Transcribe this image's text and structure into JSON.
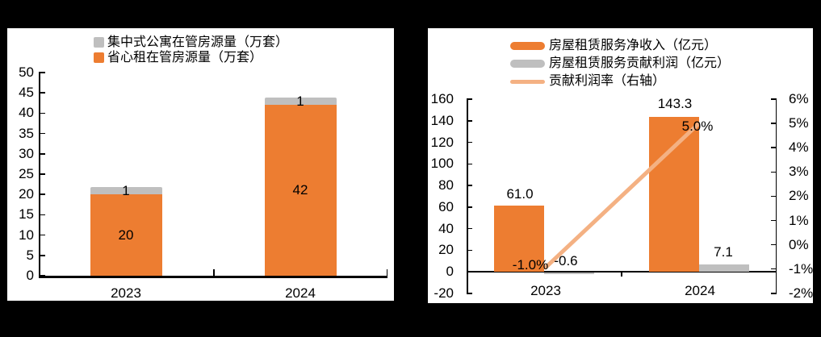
{
  "left_chart": {
    "legend": [
      {
        "label": "集中式公寓在管房源量（万套）",
        "color": "#BFBFBF",
        "marker": "square"
      },
      {
        "label": "省心租在管房源量（万套）",
        "color": "#ED7D31",
        "marker": "square"
      }
    ]
  },
  "right_chart": {
    "legend": [
      {
        "label": "房屋租赁服务净收入（亿元）",
        "color": "#ED7D31",
        "marker": "bar"
      },
      {
        "label": "房屋租赁服务贡献利润（亿元）",
        "color": "#BFBFBF",
        "marker": "bar"
      },
      {
        "label": "贡献利润率（右轴）",
        "color": "#F4B183",
        "marker": "line"
      }
    ]
  },
  "colors": {
    "orange": "#ED7D31",
    "gray": "#BFBFBF",
    "line_light_orange": "#F4B183",
    "axis_black": "#000000",
    "panel_bg": "#FFFFFF",
    "page_bg": "#000000"
  },
  "chart_data": [
    {
      "type": "bar",
      "subtype": "stacked",
      "title": "",
      "categories": [
        "2023",
        "2024"
      ],
      "series": [
        {
          "name": "省心租在管房源量（万套）",
          "color": "#ED7D31",
          "values": [
            20,
            42
          ],
          "data_labels": [
            "20",
            "42"
          ]
        },
        {
          "name": "集中式公寓在管房源量（万套）",
          "color": "#BFBFBF",
          "values": [
            1,
            1
          ],
          "data_labels": [
            "1",
            "1"
          ]
        }
      ],
      "ylim": [
        0,
        50
      ],
      "ytick_step": 5,
      "yticks": [
        0,
        5,
        10,
        15,
        20,
        25,
        30,
        35,
        40,
        45,
        50
      ],
      "grid": false,
      "legend_position": "top"
    },
    {
      "type": "bar",
      "subtype": "clustered-with-line-dual-axis",
      "title": "",
      "categories": [
        "2023",
        "2024"
      ],
      "series": [
        {
          "name": "房屋租赁服务净收入（亿元）",
          "kind": "bar",
          "axis": "left",
          "color": "#ED7D31",
          "values": [
            61.0,
            143.3
          ],
          "data_labels": [
            "61.0",
            "143.3"
          ]
        },
        {
          "name": "房屋租赁服务贡献利润（亿元）",
          "kind": "bar",
          "axis": "left",
          "color": "#BFBFBF",
          "values": [
            -0.6,
            7.1
          ],
          "data_labels": [
            "-0.6",
            "7.1"
          ]
        },
        {
          "name": "贡献利润率（右轴）",
          "kind": "line",
          "axis": "right",
          "color": "#F4B183",
          "values": [
            -1.0,
            5.0
          ],
          "unit": "%",
          "data_labels": [
            "-1.0%",
            "5.0%"
          ]
        }
      ],
      "left_ylim": [
        -20,
        160
      ],
      "left_ytick_step": 20,
      "left_yticks": [
        -20,
        0,
        20,
        40,
        60,
        80,
        100,
        120,
        140,
        160
      ],
      "right_ylim": [
        -2,
        6
      ],
      "right_ytick_step": 1,
      "right_yticks": [
        "-2%",
        "-1%",
        "0%",
        "1%",
        "2%",
        "3%",
        "4%",
        "5%",
        "6%"
      ],
      "grid": false,
      "legend_position": "top"
    }
  ]
}
